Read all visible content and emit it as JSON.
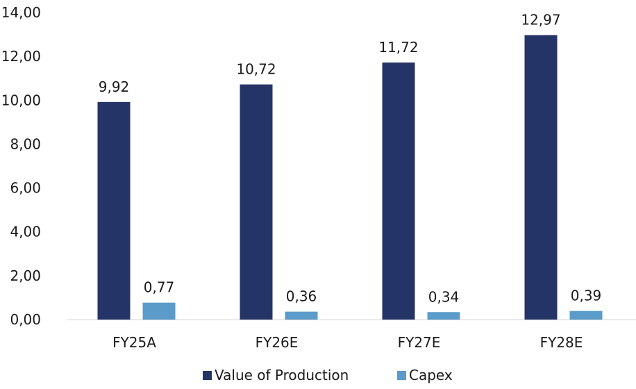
{
  "chart_data": {
    "type": "bar",
    "categories": [
      "FY25A",
      "FY26E",
      "FY27E",
      "FY28E"
    ],
    "series": [
      {
        "name": "Value of Production",
        "values": [
          9.92,
          10.72,
          11.72,
          12.97
        ],
        "labels": [
          "9,92",
          "10,72",
          "11,72",
          "12,97"
        ],
        "color": "#253467"
      },
      {
        "name": "Capex",
        "values": [
          0.77,
          0.36,
          0.34,
          0.39
        ],
        "labels": [
          "0,77",
          "0,36",
          "0,34",
          "0,39"
        ],
        "color": "#5B9BC9"
      }
    ],
    "y_ticks": [
      0,
      2,
      4,
      6,
      8,
      10,
      12,
      14
    ],
    "y_tick_labels": [
      "0,00",
      "2,00",
      "4,00",
      "6,00",
      "8,00",
      "10,00",
      "12,00",
      "14,00"
    ],
    "ylim": [
      0,
      14
    ],
    "grid": false,
    "legend": "bottom",
    "title": "",
    "xlabel": "",
    "ylabel": ""
  }
}
